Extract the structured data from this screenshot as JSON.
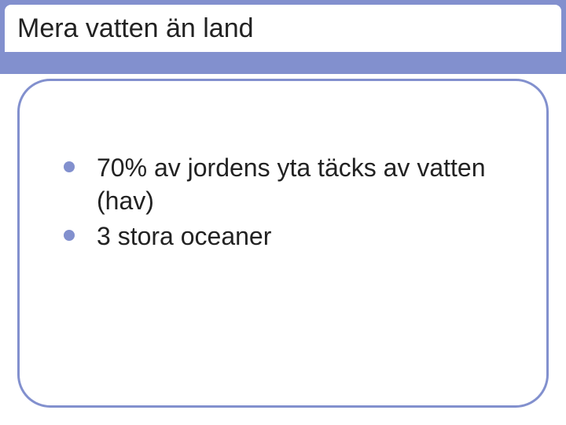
{
  "slide": {
    "title": "Mera vatten än land",
    "bullets": [
      "70% av jordens yta täcks av vatten (hav)",
      "3 stora oceaner"
    ],
    "colors": {
      "accent": "#8290ce",
      "background": "#ffffff",
      "text": "#222222"
    },
    "typography": {
      "title_fontsize": 34,
      "bullet_fontsize": 32,
      "font_family": "Arial"
    },
    "layout": {
      "title_bar_height": 94,
      "content_border_radius": 42,
      "content_border_width": 3
    }
  }
}
